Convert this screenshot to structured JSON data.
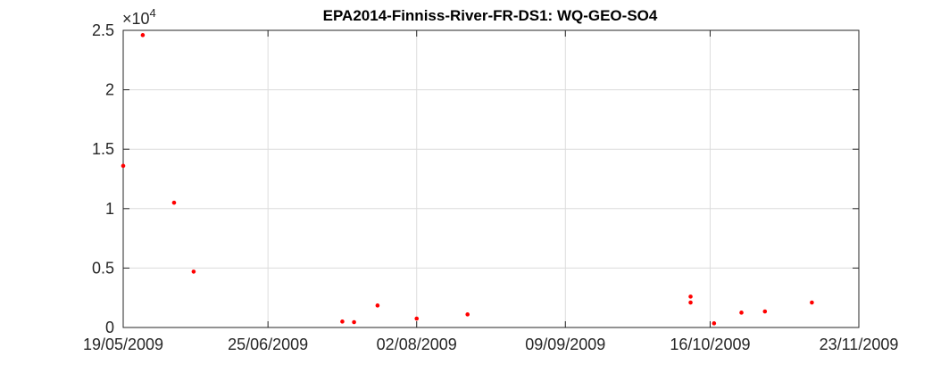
{
  "chart_data": {
    "type": "scatter",
    "title": "EPA2014-Finniss-River-FR-DS1: WQ-GEO-SO4",
    "xlabel": "",
    "ylabel": "",
    "x_axis_type": "date",
    "xlim": [
      "2009-05-19",
      "2009-11-23"
    ],
    "ylim": [
      0,
      25000
    ],
    "exponent_label": "×10",
    "exponent_power": "4",
    "x_ticks": [
      {
        "date": "2009-05-19",
        "label": "19/05/2009"
      },
      {
        "date": "2009-06-25",
        "label": "25/06/2009"
      },
      {
        "date": "2009-08-02",
        "label": "02/08/2009"
      },
      {
        "date": "2009-09-09",
        "label": "09/09/2009"
      },
      {
        "date": "2009-10-16",
        "label": "16/10/2009"
      },
      {
        "date": "2009-11-23",
        "label": "23/11/2009"
      }
    ],
    "y_ticks": [
      {
        "value": 0,
        "label": "0"
      },
      {
        "value": 5000,
        "label": "0.5"
      },
      {
        "value": 10000,
        "label": "1"
      },
      {
        "value": 15000,
        "label": "1.5"
      },
      {
        "value": 20000,
        "label": "2"
      },
      {
        "value": 25000,
        "label": "2.5"
      }
    ],
    "grid": true,
    "marker_color": "#ff0000",
    "points": [
      {
        "x": "2009-05-19",
        "y": 13600
      },
      {
        "x": "2009-05-24",
        "y": 24600
      },
      {
        "x": "2009-06-01",
        "y": 10500
      },
      {
        "x": "2009-06-06",
        "y": 4700
      },
      {
        "x": "2009-07-14",
        "y": 500
      },
      {
        "x": "2009-07-17",
        "y": 450
      },
      {
        "x": "2009-07-23",
        "y": 1850
      },
      {
        "x": "2009-08-02",
        "y": 750
      },
      {
        "x": "2009-08-15",
        "y": 1100
      },
      {
        "x": "2009-10-11",
        "y": 2100
      },
      {
        "x": "2009-10-11",
        "y": 2600
      },
      {
        "x": "2009-10-17",
        "y": 350
      },
      {
        "x": "2009-10-24",
        "y": 1250
      },
      {
        "x": "2009-10-30",
        "y": 1350
      },
      {
        "x": "2009-11-11",
        "y": 2100
      }
    ]
  }
}
